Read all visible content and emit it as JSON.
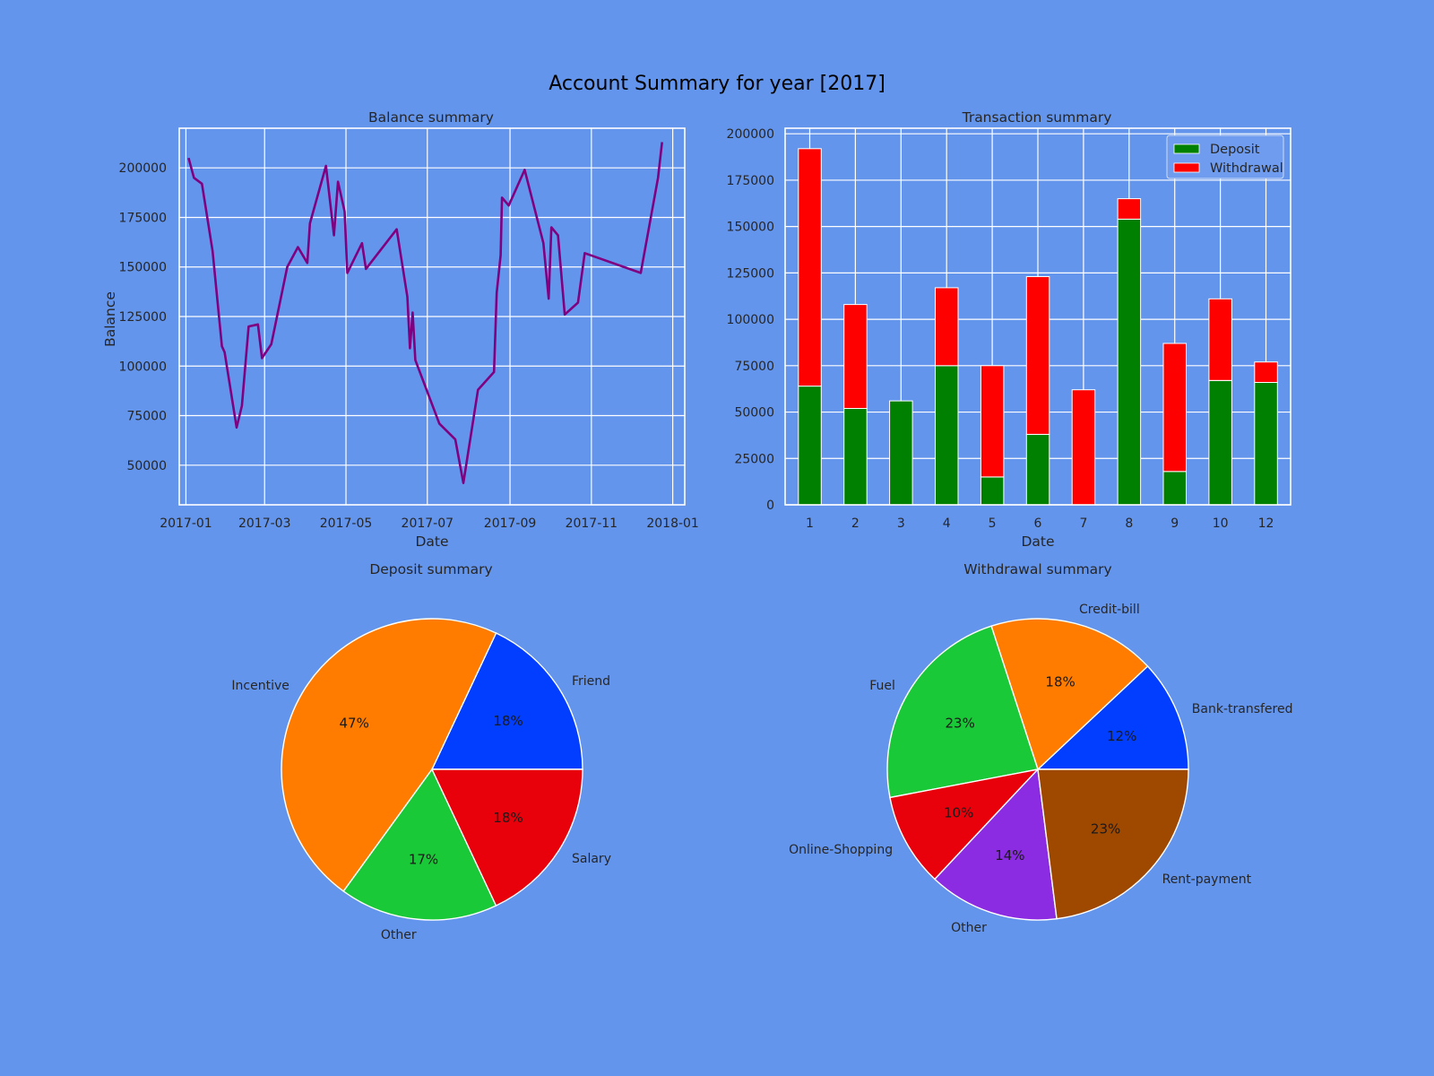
{
  "figure": {
    "title": "Account Summary for year [2017]",
    "background": "#6495ed"
  },
  "chart_data": [
    {
      "type": "line",
      "title": "Balance summary",
      "xlabel": "Date",
      "ylabel": "Balance",
      "color": "#800080",
      "xlim": [
        "2016-12-27",
        "2018-01-10"
      ],
      "ylim": [
        30000,
        220000
      ],
      "xticks": [
        "2017-01",
        "2017-03",
        "2017-05",
        "2017-07",
        "2017-09",
        "2017-11",
        "2018-01"
      ],
      "yticks": [
        50000,
        75000,
        100000,
        125000,
        150000,
        175000,
        200000
      ],
      "grid": true,
      "points": [
        [
          "2017-01-03",
          205000
        ],
        [
          "2017-01-07",
          195000
        ],
        [
          "2017-01-13",
          192000
        ],
        [
          "2017-01-21",
          158000
        ],
        [
          "2017-01-28",
          110000
        ],
        [
          "2017-01-30",
          107000
        ],
        [
          "2017-02-08",
          69000
        ],
        [
          "2017-02-12",
          80000
        ],
        [
          "2017-02-17",
          120000
        ],
        [
          "2017-02-24",
          121000
        ],
        [
          "2017-02-27",
          104000
        ],
        [
          "2017-03-06",
          111000
        ],
        [
          "2017-03-18",
          150000
        ],
        [
          "2017-03-26",
          160000
        ],
        [
          "2017-04-02",
          152000
        ],
        [
          "2017-04-04",
          172000
        ],
        [
          "2017-04-16",
          201000
        ],
        [
          "2017-04-22",
          166000
        ],
        [
          "2017-04-25",
          193000
        ],
        [
          "2017-04-30",
          178000
        ],
        [
          "2017-05-02",
          147000
        ],
        [
          "2017-05-13",
          162000
        ],
        [
          "2017-05-16",
          149000
        ],
        [
          "2017-06-08",
          169000
        ],
        [
          "2017-06-16",
          135000
        ],
        [
          "2017-06-18",
          109000
        ],
        [
          "2017-06-20",
          127000
        ],
        [
          "2017-06-22",
          103000
        ],
        [
          "2017-07-10",
          71000
        ],
        [
          "2017-07-22",
          63000
        ],
        [
          "2017-07-28",
          41000
        ],
        [
          "2017-08-08",
          88000
        ],
        [
          "2017-08-20",
          97000
        ],
        [
          "2017-08-22",
          137000
        ],
        [
          "2017-08-25",
          156000
        ],
        [
          "2017-08-26",
          185000
        ],
        [
          "2017-08-31",
          181000
        ],
        [
          "2017-09-12",
          199000
        ],
        [
          "2017-09-26",
          162000
        ],
        [
          "2017-09-30",
          134000
        ],
        [
          "2017-10-02",
          170000
        ],
        [
          "2017-10-07",
          166000
        ],
        [
          "2017-10-12",
          126000
        ],
        [
          "2017-10-22",
          132000
        ],
        [
          "2017-10-27",
          157000
        ],
        [
          "2017-12-08",
          147000
        ],
        [
          "2017-12-21",
          195000
        ],
        [
          "2017-12-24",
          213000
        ]
      ]
    },
    {
      "type": "bar",
      "stacked": true,
      "title": "Transaction summary",
      "xlabel": "Date",
      "categories": [
        "1",
        "2",
        "3",
        "4",
        "5",
        "6",
        "7",
        "8",
        "9",
        "10",
        "12"
      ],
      "series": [
        {
          "name": "Deposit",
          "color": "#008000",
          "values": [
            64000,
            52000,
            56000,
            75000,
            15000,
            38000,
            0,
            154000,
            18000,
            67000,
            66000
          ]
        },
        {
          "name": "Withdrawal",
          "color": "#ff0000",
          "values": [
            128000,
            56000,
            0,
            42000,
            60000,
            85000,
            62000,
            11000,
            69000,
            44000,
            11000
          ]
        }
      ],
      "ylim": [
        0,
        203000
      ],
      "yticks": [
        0,
        25000,
        50000,
        75000,
        100000,
        125000,
        150000,
        175000,
        200000
      ],
      "grid": true,
      "legend_position": "top-right"
    },
    {
      "type": "pie",
      "title": "Deposit summary",
      "start_angle": 0,
      "slices": [
        {
          "label": "Friend",
          "pct": 18,
          "color": "#023eff"
        },
        {
          "label": "Incentive",
          "pct": 47,
          "color": "#ff7c00"
        },
        {
          "label": "Other",
          "pct": 17,
          "color": "#1ac938"
        },
        {
          "label": "Salary",
          "pct": 18,
          "color": "#e8000b"
        }
      ]
    },
    {
      "type": "pie",
      "title": "Withdrawal summary",
      "start_angle": 0,
      "slices": [
        {
          "label": "Bank-transfered",
          "pct": 12,
          "color": "#023eff"
        },
        {
          "label": "Credit-bill",
          "pct": 18,
          "color": "#ff7c00"
        },
        {
          "label": "Fuel",
          "pct": 23,
          "color": "#1ac938"
        },
        {
          "label": "Online-Shopping",
          "pct": 10,
          "color": "#e8000b"
        },
        {
          "label": "Other",
          "pct": 14,
          "color": "#8b2be2"
        },
        {
          "label": "Rent-payment",
          "pct": 23,
          "color": "#9f4800"
        }
      ]
    }
  ]
}
